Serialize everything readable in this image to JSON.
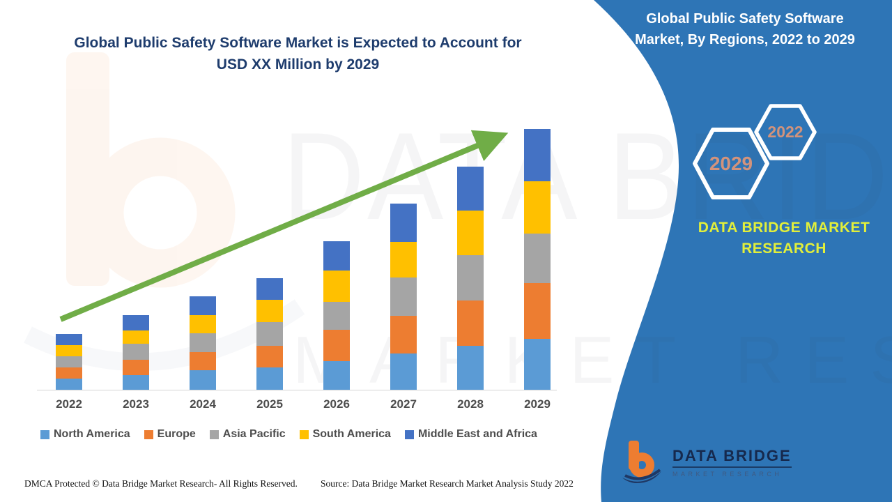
{
  "colors": {
    "panel": "#2E75B6",
    "title": "#1E3C6D",
    "arrow": "#70AD47",
    "brand_yellow": "#E2EF3A",
    "hex_year": "#D2937C",
    "axis_label": "#4D4D4D"
  },
  "chart": {
    "title_line1": "Global Public Safety Software Market is Expected to Account for",
    "title_line2": "USD XX Million by 2029"
  },
  "chart_data": {
    "type": "bar",
    "stacked": true,
    "title": "Global Public Safety Software Market is Expected to Account for USD XX Million by 2029",
    "xlabel": "",
    "ylabel": "",
    "y_axis_shown": false,
    "legend_position": "bottom",
    "trend_arrow": true,
    "categories": [
      "2022",
      "2023",
      "2024",
      "2025",
      "2026",
      "2027",
      "2028",
      "2029"
    ],
    "series": [
      {
        "name": "North America",
        "color": "#5B9BD5",
        "values": [
          16,
          21,
          28,
          32,
          41,
          52,
          63,
          73
        ]
      },
      {
        "name": "Europe",
        "color": "#ED7D31",
        "values": [
          16,
          22,
          26,
          31,
          45,
          54,
          65,
          80
        ]
      },
      {
        "name": "Asia Pacific",
        "color": "#A5A5A5",
        "values": [
          16,
          23,
          27,
          34,
          40,
          55,
          65,
          71
        ]
      },
      {
        "name": "South America",
        "color": "#FFC000",
        "values": [
          16,
          19,
          26,
          32,
          45,
          51,
          64,
          75
        ]
      },
      {
        "name": "Middle East and Africa",
        "color": "#4472C4",
        "values": [
          16,
          22,
          27,
          31,
          42,
          55,
          63,
          75
        ]
      }
    ],
    "totals": [
      80,
      107,
      134,
      160,
      213,
      267,
      320,
      374
    ]
  },
  "right_panel": {
    "title_line1": "Global Public Safety Software",
    "title_line2": "Market, By Regions, 2022 to 2029",
    "hexagon_large": "2029",
    "hexagon_small": "2022",
    "brand_line1": "DATA BRIDGE MARKET",
    "brand_line2": "RESEARCH"
  },
  "logo": {
    "line1": "DATA BRIDGE",
    "line2": "MARKET RESEARCH"
  },
  "watermark": {
    "row1": "DATA BRIDGE",
    "row2": "MARKET RESEARCH"
  },
  "footer": {
    "dmca": "DMCA Protected © Data Bridge Market Research- All Rights Reserved.",
    "source": "Source: Data Bridge Market Research Market Analysis Study 2022"
  }
}
